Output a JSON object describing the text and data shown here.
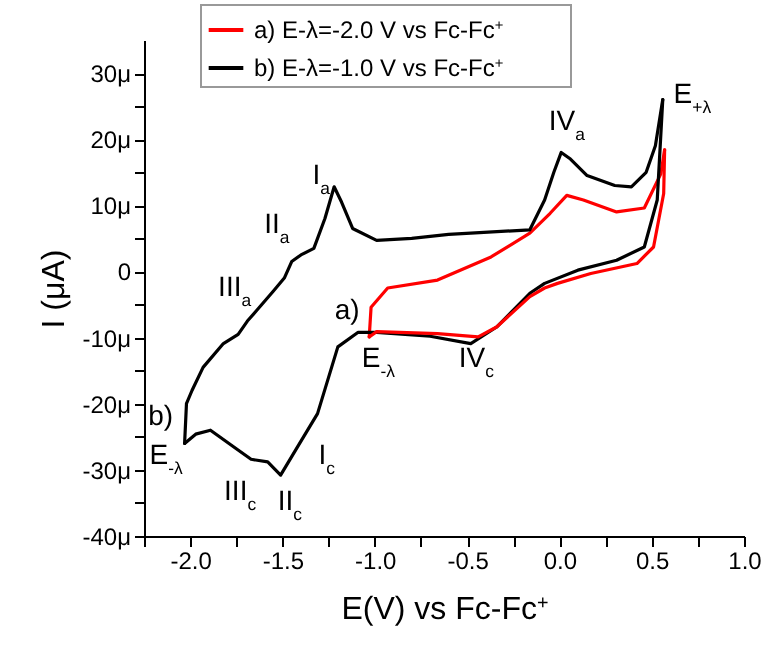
{
  "chart_data": {
    "type": "line",
    "xlabel": "E(V) vs Fc-Fc$^{+}$",
    "ylabel": "I (μA)",
    "legend": "top",
    "xlim": [
      -2.25,
      1.0
    ],
    "ylim": [
      -40,
      35
    ],
    "xticks": [
      {
        "value": -2.25,
        "label": null
      },
      {
        "value": -2,
        "label": "-2.0"
      },
      {
        "value": -1.75,
        "label": null
      },
      {
        "value": -1.5,
        "label": "-1.5"
      },
      {
        "value": -1.25,
        "label": null
      },
      {
        "value": -1,
        "label": "-1.0"
      },
      {
        "value": -0.75,
        "label": null
      },
      {
        "value": -0.5,
        "label": "-0.5"
      },
      {
        "value": -0.25,
        "label": null
      },
      {
        "value": 0,
        "label": "0.0"
      },
      {
        "value": 0.25,
        "label": null
      },
      {
        "value": 0.5,
        "label": "0.5"
      },
      {
        "value": 0.75,
        "label": null
      },
      {
        "value": 1,
        "label": "1.0"
      }
    ],
    "yticks": [
      {
        "value": -40,
        "label": "-40μ"
      },
      {
        "value": -35,
        "label": null
      },
      {
        "value": -30,
        "label": "-30μ"
      },
      {
        "value": -25,
        "label": null
      },
      {
        "value": -20,
        "label": "-20μ"
      },
      {
        "value": -15,
        "label": null
      },
      {
        "value": -10,
        "label": "-10μ"
      },
      {
        "value": -5,
        "label": null
      },
      {
        "value": 0,
        "label": "0"
      },
      {
        "value": 5,
        "label": null
      },
      {
        "value": 10,
        "label": "10μ"
      },
      {
        "value": 15,
        "label": null
      },
      {
        "value": 20,
        "label": "20μ"
      },
      {
        "value": 25,
        "label": null
      },
      {
        "value": 30,
        "label": "30μ"
      }
    ],
    "series": [
      {
        "name": "a) E-λ=-2.0 V vs Fc-Fc$^{+}$",
        "color": "#ff0000",
        "x": [
          -1.03,
          -1.02,
          -0.93,
          -0.66,
          -0.37,
          -0.16,
          -0.05,
          0.04,
          0.13,
          0.31,
          0.46,
          0.55,
          0.57
        ],
        "values": [
          -9.9,
          -5.4,
          -2.5,
          -1.3,
          2.2,
          5.8,
          8.8,
          11.5,
          10.8,
          9,
          9.6,
          14.8,
          18.4
        ]
      },
      {
        "name": "b) E-λ=-1.0 V vs Fc-Fc$^{+}$",
        "color": "#000000",
        "x": [
          0.56,
          0.53,
          0.46,
          0.31,
          0.1,
          -0.08,
          -0.16,
          -0.34,
          -0.48,
          -0.7,
          -0.99,
          -1.09,
          -1.2,
          -1.31,
          -1.42,
          -1.51,
          -1.58,
          -1.67,
          -1.75,
          -1.89,
          -1.97,
          -2.03
        ],
        "values": [
          26,
          10.8,
          3.7,
          1.7,
          0.2,
          -1.8,
          -3.3,
          -8.4,
          -10.9,
          -9.8,
          -9.2,
          -9.2,
          -11.4,
          -21.5,
          -26.6,
          -30.8,
          -28.8,
          -28.4,
          -26.8,
          -24,
          -24.6,
          -26
        ]
      },
      {
        "color": "#ff0000",
        "x": [
          0.57,
          0.565,
          0.51,
          0.42,
          0.17,
          -0.01,
          -0.08,
          -0.16,
          -0.34,
          -0.44,
          -0.66,
          -0.99,
          -1.03
        ],
        "values": [
          18.4,
          11.8,
          3.7,
          1.2,
          -0.3,
          -1.8,
          -2.5,
          -3.8,
          -8.4,
          -9.9,
          -9.4,
          -9.1,
          -9.9
        ]
      },
      {
        "color": "#000000",
        "x": [
          -2.03,
          -2.02,
          -1.99,
          -1.93,
          -1.82,
          -1.74,
          -1.69,
          -1.64,
          -1.55,
          -1.49,
          -1.45,
          -1.4,
          -1.33,
          -1.27,
          -1.22,
          -1.18,
          -1.12,
          -0.99,
          -0.8,
          -0.6,
          -0.48,
          -0.16,
          -0.08,
          -0.03,
          0.01,
          0.06,
          0.15,
          0.3,
          0.39,
          0.47,
          0.52,
          0.56
        ],
        "values": [
          -26,
          -20,
          -18,
          -14.5,
          -10.9,
          -9.5,
          -7.5,
          -5.9,
          -3,
          -1,
          1.5,
          2.5,
          3.5,
          8,
          12.8,
          10.5,
          6.5,
          4.7,
          5,
          5.6,
          5.8,
          6.3,
          10.8,
          15,
          18,
          17,
          14.5,
          13,
          12.8,
          15,
          19,
          26
        ]
      }
    ],
    "annotations": [
      {
        "text": "I$_{a}$",
        "x": -1.22,
        "y": 12.8
      },
      {
        "text": "II$_{a}$",
        "x": -1.45,
        "y": 1.5
      },
      {
        "text": "III$_{a}$",
        "x": -1.64,
        "y": -5.9
      },
      {
        "text": "IV$_{a}$",
        "x": 0.01,
        "y": 18
      },
      {
        "text": "E$_{+λ}$",
        "x": 0.56,
        "y": 26
      },
      {
        "text": "a)",
        "x": -1.03,
        "y": -9.9
      },
      {
        "text": "E$_{-λ}$",
        "x": -1.03,
        "y": -9.9
      },
      {
        "text": "IV$_{c}$",
        "x": -0.48,
        "y": -10.9
      },
      {
        "text": "b)",
        "x": -2.03,
        "y": -20
      },
      {
        "text": "E$_{-λ}$",
        "x": -2.03,
        "y": -26
      },
      {
        "text": "III$_{c}$",
        "x": -1.67,
        "y": -28.4
      },
      {
        "text": "II$_{c}$",
        "x": -1.51,
        "y": -30.8
      },
      {
        "text": "I$_{c}$",
        "x": -1.31,
        "y": -21.5
      }
    ]
  }
}
